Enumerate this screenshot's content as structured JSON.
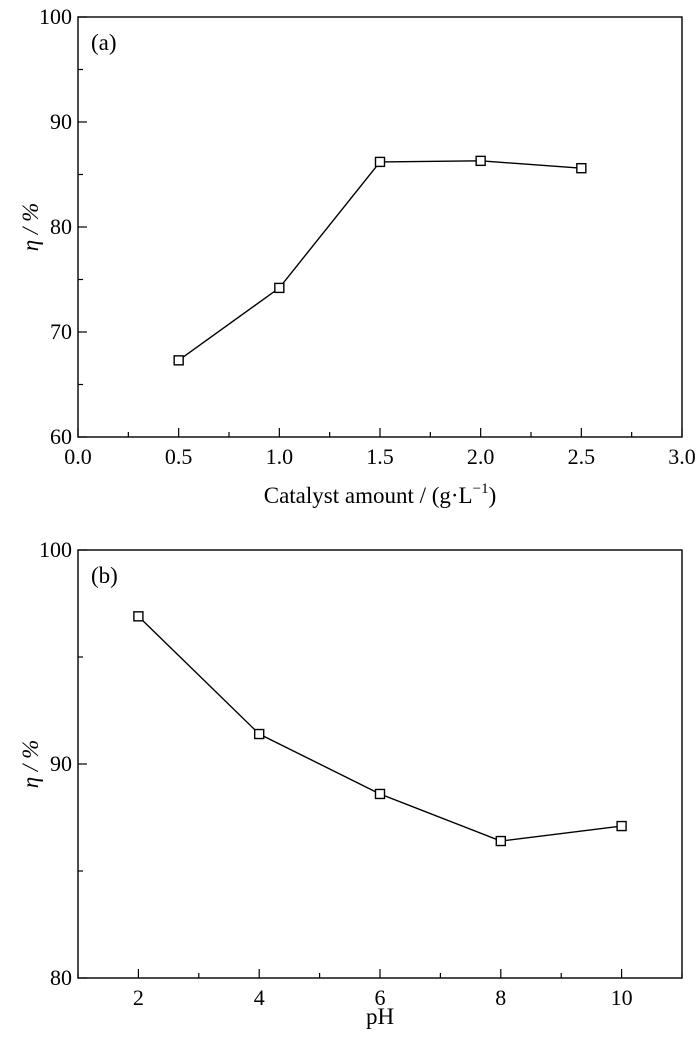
{
  "chart_data": [
    {
      "type": "line",
      "panel_label": "(a)",
      "xlabel": "Catalyst amount / (g·L",
      "xlabel_sup": "−1",
      "xlabel_close": ")",
      "ylabel": "η / %",
      "xlim": [
        0.0,
        3.0
      ],
      "ylim": [
        60,
        100
      ],
      "xticks": [
        0.0,
        0.5,
        1.0,
        1.5,
        2.0,
        2.5,
        3.0
      ],
      "xtick_labels": [
        "0.0",
        "0.5",
        "1.0",
        "1.5",
        "2.0",
        "2.5",
        "3.0"
      ],
      "xminor": [
        0.25,
        0.75,
        1.25,
        1.75,
        2.25,
        2.75
      ],
      "yticks": [
        60,
        70,
        80,
        90,
        100
      ],
      "ytick_labels": [
        "60",
        "70",
        "80",
        "90",
        "100"
      ],
      "yminor": [
        65,
        75,
        85,
        95
      ],
      "grid": false,
      "series": [
        {
          "marker": "open-square",
          "x": [
            0.5,
            1.0,
            1.5,
            2.0,
            2.5
          ],
          "y": [
            67.3,
            74.2,
            86.2,
            86.3,
            85.6
          ]
        }
      ]
    },
    {
      "type": "line",
      "panel_label": "(b)",
      "xlabel": "pH",
      "ylabel": "η / %",
      "xlim": [
        1,
        11
      ],
      "ylim": [
        80,
        100
      ],
      "xticks": [
        2,
        4,
        6,
        8,
        10
      ],
      "xtick_labels": [
        "2",
        "4",
        "6",
        "8",
        "10"
      ],
      "xminor": [
        1,
        3,
        5,
        7,
        9,
        11
      ],
      "yticks": [
        80,
        90,
        100
      ],
      "ytick_labels": [
        "80",
        "90",
        "100"
      ],
      "yminor": [
        85,
        95
      ],
      "grid": false,
      "series": [
        {
          "marker": "open-square",
          "x": [
            2,
            4,
            6,
            8,
            10
          ],
          "y": [
            96.9,
            91.4,
            88.6,
            86.4,
            87.1
          ]
        }
      ]
    }
  ]
}
